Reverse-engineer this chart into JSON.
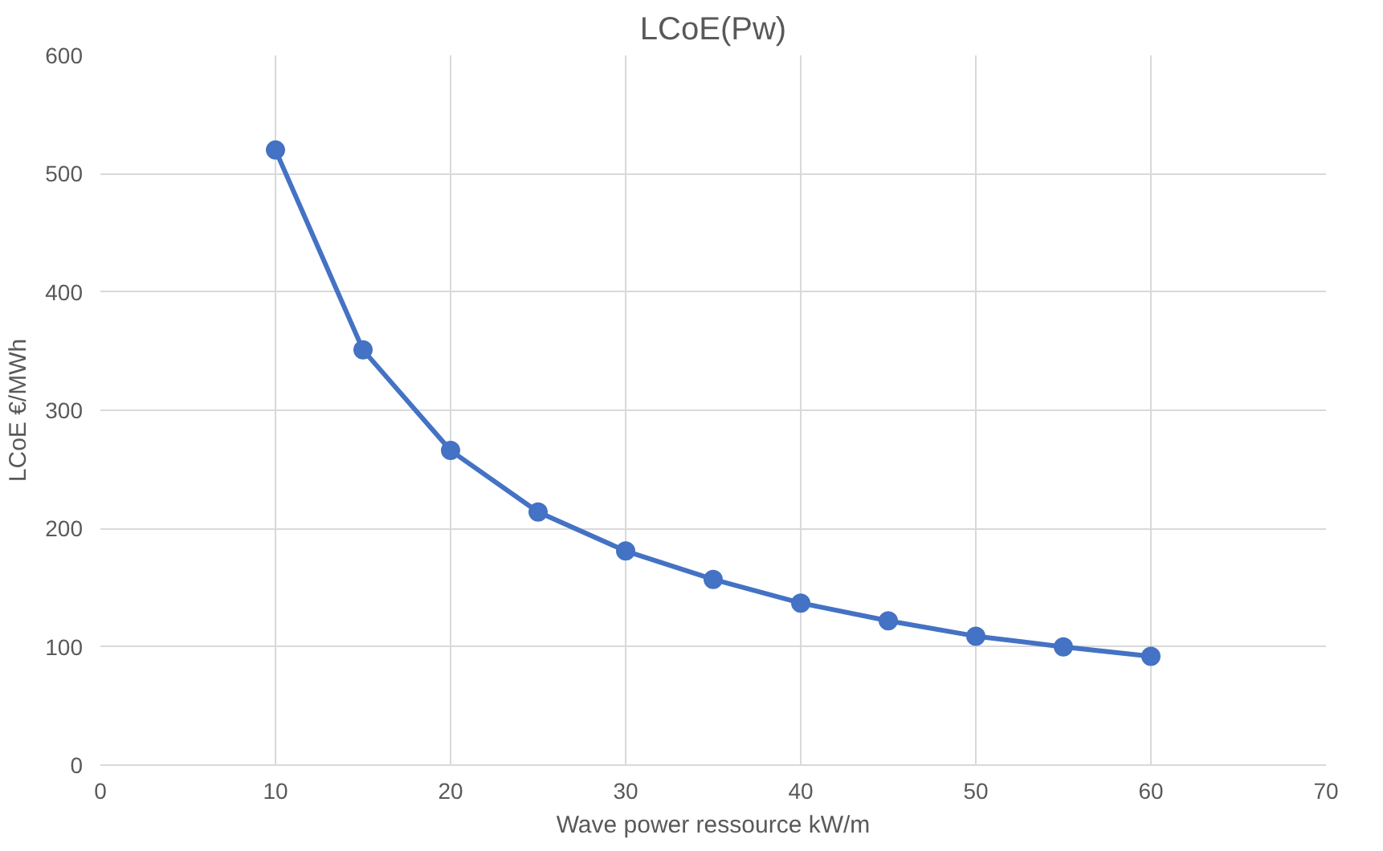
{
  "chart_data": {
    "type": "line",
    "title": "LCoE(Pw)",
    "xlabel": "Wave power ressource kW/m",
    "ylabel": "LCoE €/MWh",
    "x": [
      10,
      15,
      20,
      25,
      30,
      35,
      40,
      45,
      50,
      55,
      60
    ],
    "series": [
      {
        "color": "#4472c4",
        "values": [
          520,
          351,
          266,
          214,
          181,
          157,
          137,
          122,
          109,
          100,
          92
        ]
      }
    ],
    "xlim": [
      0,
      70
    ],
    "xticks": [
      0,
      10,
      20,
      30,
      40,
      50,
      60,
      70
    ],
    "ylim": [
      0,
      600
    ],
    "yticks": [
      0,
      100,
      200,
      300,
      400,
      500,
      600
    ],
    "grid": true,
    "marker": "circle",
    "line_style": "solid"
  }
}
